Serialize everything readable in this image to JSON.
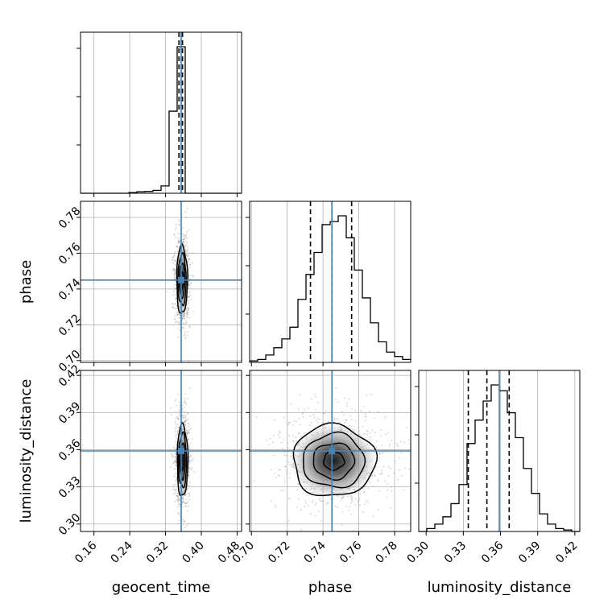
{
  "chart_data": {
    "type": "corner",
    "parameters": [
      {
        "name": "geocent_time",
        "truth": 0.355,
        "range": [
          0.13,
          0.49
        ],
        "ticks": [
          0.16,
          0.24,
          0.32,
          0.4,
          0.48
        ],
        "tick_labels": [
          "0.16",
          "0.24",
          "0.32",
          "0.40",
          "0.48"
        ],
        "quantiles": [
          0.35,
          0.355,
          0.358
        ]
      },
      {
        "name": "phase",
        "truth": 0.745,
        "range": [
          0.699,
          0.789
        ],
        "ticks": [
          0.7,
          0.72,
          0.74,
          0.76,
          0.78
        ],
        "tick_labels": [
          "0.70",
          "0.72",
          "0.74",
          "0.76",
          "0.78"
        ],
        "quantiles": [
          0.733,
          0.745,
          0.756
        ]
      },
      {
        "name": "luminosity_distance",
        "truth": 0.359,
        "range": [
          0.294,
          0.424
        ],
        "ticks": [
          0.3,
          0.33,
          0.36,
          0.39,
          0.42
        ],
        "tick_labels": [
          "0.30",
          "0.33",
          "0.36",
          "0.39",
          "0.42"
        ],
        "quantiles": [
          0.334,
          0.349,
          0.367
        ]
      }
    ],
    "histograms": [
      {
        "param": "geocent_time",
        "bins": [
          0.13,
          0.148,
          0.166,
          0.184,
          0.202,
          0.22,
          0.238,
          0.256,
          0.274,
          0.292,
          0.31,
          0.328,
          0.346,
          0.364,
          0.382,
          0.4,
          0.418,
          0.436,
          0.454,
          0.472,
          0.49
        ],
        "counts": [
          0,
          0,
          0,
          0,
          0,
          0,
          0.005,
          0.01,
          0.012,
          0.02,
          0.05,
          0.56,
          1.0,
          0,
          0,
          0,
          0,
          0,
          0,
          0
        ]
      },
      {
        "param": "phase",
        "bins": [
          0.699,
          0.7035,
          0.708,
          0.7125,
          0.717,
          0.7215,
          0.726,
          0.7305,
          0.735,
          0.7395,
          0.744,
          0.7485,
          0.753,
          0.7575,
          0.762,
          0.7665,
          0.771,
          0.7755,
          0.78,
          0.7845,
          0.789
        ],
        "counts": [
          0.01,
          0.02,
          0.05,
          0.1,
          0.16,
          0.24,
          0.43,
          0.6,
          0.75,
          0.94,
          0.96,
          1.0,
          0.85,
          0.63,
          0.44,
          0.27,
          0.14,
          0.07,
          0.04,
          0.02
        ]
      },
      {
        "param": "luminosity_distance",
        "bins": [
          0.294,
          0.3005,
          0.307,
          0.3135,
          0.32,
          0.3265,
          0.333,
          0.3395,
          0.346,
          0.3525,
          0.359,
          0.3655,
          0.372,
          0.3785,
          0.385,
          0.3915,
          0.398,
          0.4045,
          0.411,
          0.4175,
          0.424
        ],
        "counts": [
          0,
          0.02,
          0.05,
          0.1,
          0.19,
          0.32,
          0.6,
          0.76,
          0.89,
          1.0,
          0.96,
          0.81,
          0.64,
          0.43,
          0.26,
          0.12,
          0.05,
          0.02,
          0.01,
          0
        ]
      }
    ],
    "scatter_2d": [
      {
        "x": "geocent_time",
        "y": "phase",
        "center": [
          0.357,
          0.745
        ],
        "spread": [
          0.006,
          0.0095
        ],
        "contour_levels_sigma": [
          0.5,
          1.0,
          1.5,
          2.0
        ]
      },
      {
        "x": "geocent_time",
        "y": "luminosity_distance",
        "center": [
          0.358,
          0.351
        ],
        "spread": [
          0.006,
          0.0145
        ],
        "contour_levels_sigma": [
          0.5,
          1.0,
          1.5,
          2.0
        ]
      },
      {
        "x": "phase",
        "y": "luminosity_distance",
        "center": [
          0.746,
          0.351
        ],
        "spread": [
          0.0115,
          0.0145
        ],
        "contour_levels_sigma": [
          0.5,
          1.0,
          1.5,
          2.0
        ]
      }
    ],
    "colors": {
      "truth": "#4682b4",
      "hist": "#000000",
      "quantile": "#000000",
      "grid": "#b0b0b0",
      "points": "#7f7f7f"
    },
    "grid": true,
    "xlabels": [
      "geocent_time",
      "phase",
      "luminosity_distance"
    ],
    "ylabels": [
      "",
      "phase",
      "luminosity_distance"
    ]
  }
}
